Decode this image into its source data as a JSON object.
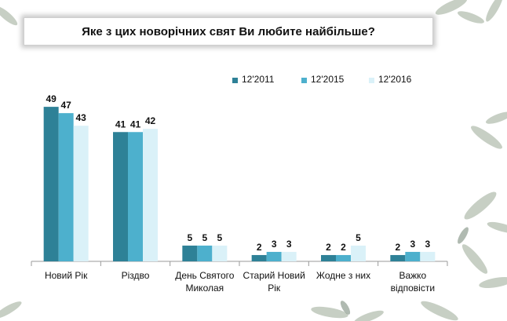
{
  "chart_data": {
    "type": "bar",
    "title": "Яке з цих новорічних свят Ви любите найбільше?",
    "categories": [
      "Новий Рік",
      "Різдво",
      "День Святого Миколая",
      "Старий Новий Рік",
      "Жодне з них",
      "Важко відповісти"
    ],
    "category_lines": [
      [
        "Новий Рік"
      ],
      [
        "Різдво"
      ],
      [
        "День Святого",
        "Миколая"
      ],
      [
        "Старий Новий",
        "Рік"
      ],
      [
        "Жодне з них"
      ],
      [
        "Важко",
        "відповісти"
      ]
    ],
    "series": [
      {
        "name": "12'2011",
        "color": "#2e8197",
        "values": [
          49,
          41,
          5,
          2,
          2,
          2
        ]
      },
      {
        "name": "12'2015",
        "color": "#4db0cd",
        "values": [
          47,
          41,
          5,
          3,
          2,
          3
        ]
      },
      {
        "name": "12'2016",
        "color": "#daf1f8",
        "values": [
          43,
          42,
          5,
          3,
          5,
          3
        ]
      }
    ],
    "ylim": [
      0,
      55
    ],
    "grid": false,
    "legend_position": "top-right"
  }
}
